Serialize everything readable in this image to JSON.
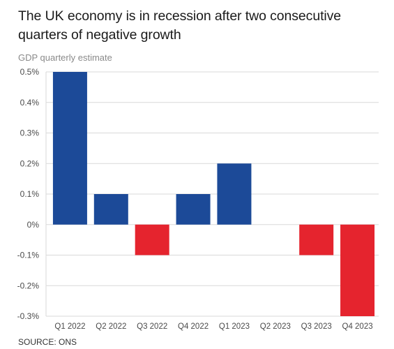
{
  "title": "The UK economy is in recession after two consecutive quarters of negative growth",
  "subtitle": "GDP quarterly estimate",
  "source": "SOURCE: ONS",
  "colors": {
    "positive": "#1c4a98",
    "negative": "#e5242e",
    "grid": "#d9d9d9",
    "axis_text": "#4a4a4a"
  },
  "chart_data": {
    "type": "bar",
    "ylabel": "GDP quarterly estimate",
    "categories": [
      "Q1 2022",
      "Q2 2022",
      "Q3 2022",
      "Q4 2022",
      "Q1 2023",
      "Q2 2023",
      "Q3 2023",
      "Q4 2023"
    ],
    "values": [
      0.5,
      0.1,
      -0.1,
      0.1,
      0.2,
      0.0,
      -0.1,
      -0.3
    ],
    "ylim": [
      -0.3,
      0.5
    ],
    "yticks": [
      0.5,
      0.4,
      0.3,
      0.2,
      0.1,
      0,
      -0.1,
      -0.2,
      -0.3
    ],
    "ytick_labels": [
      "0.5%",
      "0.4%",
      "0.3%",
      "0.2%",
      "0.1%",
      "0%",
      "-0.1%",
      "-0.2%",
      "-0.3%"
    ],
    "grid": true,
    "legend": false
  }
}
